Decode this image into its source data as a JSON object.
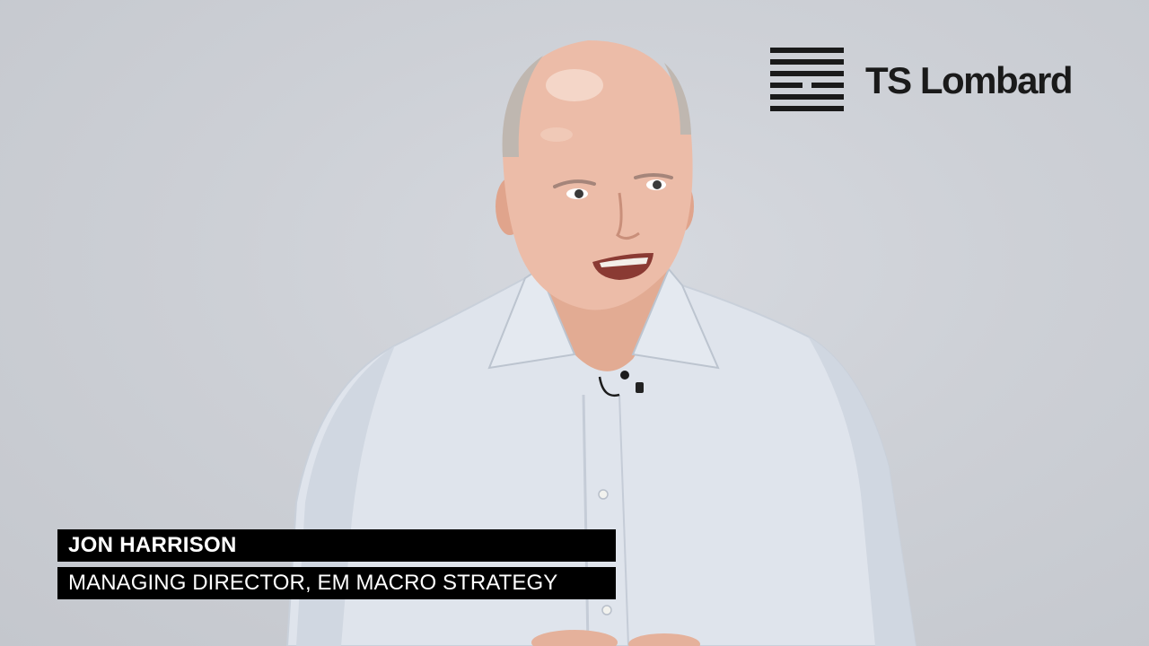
{
  "logo": {
    "text": "TS Lombard",
    "icon": "ts-lombard-mark-icon",
    "color": "#1a1a1a"
  },
  "lower_third": {
    "name": "JON HARRISON",
    "title": "MANAGING DIRECTOR, EM MACRO STRATEGY",
    "background_color": "#000000",
    "text_color": "#ffffff"
  },
  "colors": {
    "backdrop": "#cdd0d6",
    "shirt": "#dfe4ec",
    "skin": "#e8b8a3"
  }
}
